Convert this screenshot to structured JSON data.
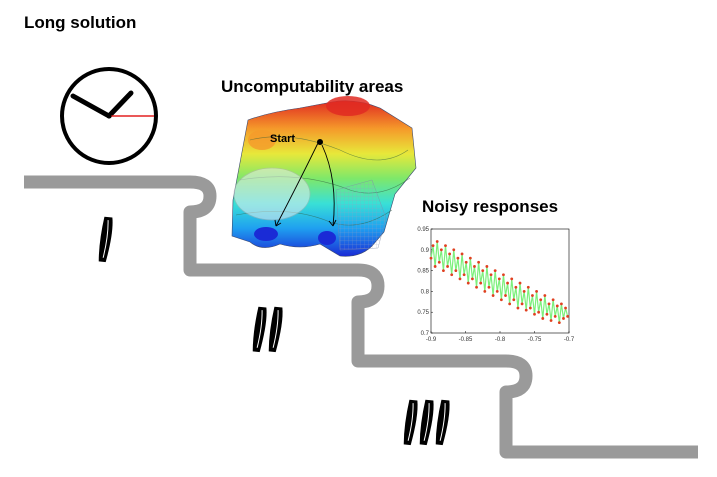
{
  "headings": {
    "long_solution": "Long solution",
    "uncomputability_areas": "Uncomputability areas",
    "noisy_responses": "Noisy responses"
  },
  "surface_plot": {
    "start_label": "Start",
    "colormap": [
      "#1a2bd6",
      "#1fa0f0",
      "#39e0d6",
      "#7ee86a",
      "#e8e83a",
      "#f59a2a",
      "#e02a22"
    ]
  },
  "blades": {
    "level_1_count": 1,
    "level_2_count": 2,
    "level_3_count": 3
  },
  "colors": {
    "road": "#9a9a9a",
    "clock_second_hand": "#e32020",
    "noise_line": "#7cf07c",
    "noise_point": "#e04020"
  },
  "chart_data": {
    "type": "scatter",
    "title": "",
    "xlabel": "",
    "ylabel": "",
    "xlim": [
      -0.9,
      -0.7
    ],
    "ylim": [
      0.7,
      0.95
    ],
    "x_ticks": [
      "-0.9",
      "-0.85",
      "-0.8",
      "-0.75",
      "-0.7"
    ],
    "y_ticks": [
      "0.7",
      "0.75",
      "0.8",
      "0.85",
      "0.9",
      "0.95"
    ],
    "series": [
      {
        "x": [
          -0.9,
          -0.897,
          -0.894,
          -0.891,
          -0.888,
          -0.885,
          -0.882,
          -0.879,
          -0.876,
          -0.873,
          -0.87,
          -0.867,
          -0.864,
          -0.861,
          -0.858,
          -0.855,
          -0.852,
          -0.849,
          -0.846,
          -0.843,
          -0.84,
          -0.837,
          -0.834,
          -0.831,
          -0.828,
          -0.825,
          -0.822,
          -0.819,
          -0.816,
          -0.813,
          -0.81,
          -0.807,
          -0.804,
          -0.801,
          -0.798,
          -0.795,
          -0.792,
          -0.789,
          -0.786,
          -0.783,
          -0.78,
          -0.777,
          -0.774,
          -0.771,
          -0.768,
          -0.765,
          -0.762,
          -0.759,
          -0.756,
          -0.753,
          -0.75,
          -0.747,
          -0.744,
          -0.741,
          -0.738,
          -0.735,
          -0.732,
          -0.729,
          -0.726,
          -0.723,
          -0.72,
          -0.717,
          -0.714,
          -0.711,
          -0.708,
          -0.705,
          -0.702
        ],
        "y": [
          0.88,
          0.91,
          0.86,
          0.92,
          0.87,
          0.9,
          0.85,
          0.91,
          0.86,
          0.89,
          0.84,
          0.9,
          0.85,
          0.88,
          0.83,
          0.89,
          0.84,
          0.87,
          0.82,
          0.88,
          0.83,
          0.86,
          0.81,
          0.87,
          0.82,
          0.85,
          0.8,
          0.86,
          0.81,
          0.84,
          0.79,
          0.85,
          0.8,
          0.83,
          0.78,
          0.84,
          0.79,
          0.82,
          0.77,
          0.83,
          0.78,
          0.81,
          0.76,
          0.82,
          0.77,
          0.8,
          0.755,
          0.81,
          0.76,
          0.79,
          0.745,
          0.8,
          0.75,
          0.78,
          0.735,
          0.79,
          0.745,
          0.77,
          0.73,
          0.78,
          0.74,
          0.765,
          0.725,
          0.77,
          0.735,
          0.76,
          0.74
        ]
      }
    ]
  }
}
